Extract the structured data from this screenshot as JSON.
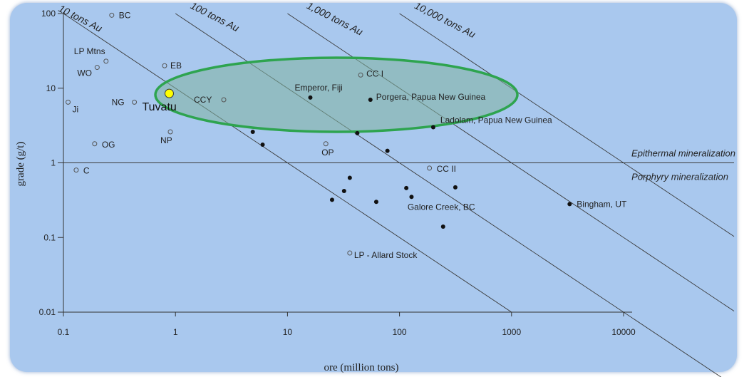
{
  "chart_data": {
    "type": "scatter",
    "title": "",
    "xlabel": "ore (million tons)",
    "ylabel": "grade (g/t)",
    "xscale": "log",
    "yscale": "log",
    "xlim": [
      0.1,
      10000
    ],
    "ylim": [
      0.01,
      100
    ],
    "x_ticks": [
      "0.1",
      "1",
      "10",
      "100",
      "1000",
      "10000"
    ],
    "y_ticks": [
      "0.01",
      "0.1",
      "1",
      "10",
      "100"
    ],
    "grid": false,
    "contour_lines": [
      {
        "label": "10 tons Au",
        "tons_au": 10
      },
      {
        "label": "100 tons Au",
        "tons_au": 100
      },
      {
        "label": "1,000 tons Au",
        "tons_au": 1000
      },
      {
        "label": "10,000 tons Au",
        "tons_au": 10000
      }
    ],
    "zones": [
      {
        "label": "Epithermal mineralization"
      },
      {
        "label": "Porphyry mineralization"
      }
    ],
    "boundary_grade": 1,
    "series": [
      {
        "name": "",
        "marker": "open",
        "points": [
          {
            "label": "BC",
            "x": 0.27,
            "y": 95
          },
          {
            "label": "LP Mtns",
            "x": 0.24,
            "y": 23
          },
          {
            "label": "WO",
            "x": 0.2,
            "y": 19
          },
          {
            "label": "Ji",
            "x": 0.11,
            "y": 6.5
          },
          {
            "label": "NG",
            "x": 0.43,
            "y": 6.5
          },
          {
            "label": "EB",
            "x": 0.8,
            "y": 20
          },
          {
            "label": "CCY",
            "x": 2.7,
            "y": 7.0
          },
          {
            "label": "NP",
            "x": 0.9,
            "y": 2.6
          },
          {
            "label": "OG",
            "x": 0.19,
            "y": 1.8
          },
          {
            "label": "C",
            "x": 0.13,
            "y": 0.8
          },
          {
            "label": "OP",
            "x": 22,
            "y": 1.8
          },
          {
            "label": "CC I",
            "x": 45,
            "y": 15
          },
          {
            "label": "CC II",
            "x": 185,
            "y": 0.85
          },
          {
            "label": "LP - Allard Stock",
            "x": 36,
            "y": 0.062
          }
        ]
      },
      {
        "name": "",
        "marker": "filled",
        "points": [
          {
            "label": "Emperor, Fiji",
            "x": 16,
            "y": 7.5
          },
          {
            "label": "Porgera, Papua New Guinea",
            "x": 55,
            "y": 7.0
          },
          {
            "label": "Ladolam, Papua New Guinea",
            "x": 200,
            "y": 3.0
          },
          {
            "label": "",
            "x": 4.9,
            "y": 2.6
          },
          {
            "label": "",
            "x": 6.0,
            "y": 1.75
          },
          {
            "label": "",
            "x": 42,
            "y": 2.5
          },
          {
            "label": "",
            "x": 78,
            "y": 1.45
          },
          {
            "label": "",
            "x": 36,
            "y": 0.63
          },
          {
            "label": "",
            "x": 32,
            "y": 0.42
          },
          {
            "label": "",
            "x": 25,
            "y": 0.32
          },
          {
            "label": "",
            "x": 62,
            "y": 0.3
          },
          {
            "label": "",
            "x": 115,
            "y": 0.46
          },
          {
            "label": "",
            "x": 128,
            "y": 0.35
          },
          {
            "label": "Galore Creek, BC",
            "x": 125,
            "y": 0.35
          },
          {
            "label": "",
            "x": 315,
            "y": 0.47
          },
          {
            "label": "",
            "x": 245,
            "y": 0.14
          },
          {
            "label": "Bingham, UT",
            "x": 3300,
            "y": 0.28
          }
        ]
      },
      {
        "name": "",
        "marker": "highlight",
        "color": "#ffff00",
        "points": [
          {
            "label": "Tuvatu",
            "x": 0.88,
            "y": 8.5
          }
        ]
      }
    ],
    "highlight_region": {
      "color": "#2ea44f",
      "fill": "#7fb3a0"
    }
  }
}
